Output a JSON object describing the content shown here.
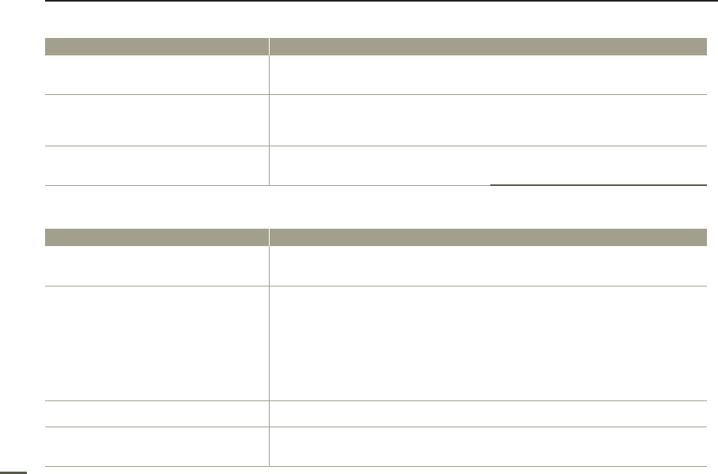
{
  "colors": {
    "header_fill": "#a29f8c",
    "rule": "#a29f8c",
    "accent": "#5b5a48",
    "top_rule": "#231f20"
  },
  "tables": [
    {
      "header": [
        "",
        ""
      ],
      "rows": [
        [
          "",
          ""
        ],
        [
          "",
          ""
        ],
        [
          "",
          ""
        ]
      ]
    },
    {
      "header": [
        "",
        ""
      ],
      "rows": [
        [
          "",
          ""
        ],
        [
          "",
          ""
        ],
        [
          "",
          ""
        ],
        [
          "",
          ""
        ]
      ]
    }
  ]
}
